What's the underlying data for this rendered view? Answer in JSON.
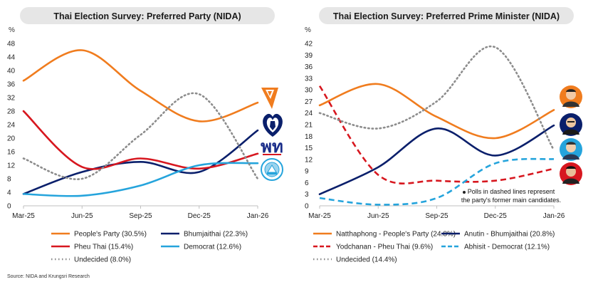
{
  "colors": {
    "orange": "#F07C1E",
    "navy": "#0A1F6B",
    "red": "#D7171F",
    "blue": "#25A4DC",
    "grey": "#8C8C8C",
    "title_bg": "#E6E6E6",
    "axis": "#BFBFBF"
  },
  "source": "Source: NIDA and Krungsri Research",
  "chart_data": [
    {
      "type": "line",
      "title": "Thai Election Survey: Preferred Party (NIDA)",
      "ylabel": "%",
      "ylim": [
        0,
        48
      ],
      "yticks": [
        0,
        4,
        8,
        12,
        16,
        20,
        24,
        28,
        32,
        36,
        40,
        44,
        48
      ],
      "categories": [
        "Mar-25",
        "Jun-25",
        "Sep-25",
        "Dec-25",
        "Jan-26"
      ],
      "series": [
        {
          "name": "People's Party",
          "legend": "People's Party (30.5%)",
          "color": "#F07C1E",
          "dashed": false,
          "style": "solid",
          "values": [
            37,
            46,
            34,
            25,
            30.5
          ]
        },
        {
          "name": "Bhumjaithai",
          "legend": "Bhumjaithai (22.3%)",
          "color": "#0A1F6B",
          "dashed": false,
          "style": "solid",
          "values": [
            3.5,
            10,
            13,
            10,
            22.3
          ]
        },
        {
          "name": "Pheu Thai",
          "legend": "Pheu Thai (15.4%)",
          "color": "#D7171F",
          "dashed": false,
          "style": "solid",
          "values": [
            28,
            11.5,
            14,
            11,
            15.4
          ]
        },
        {
          "name": "Democrat",
          "legend": "Democrat (12.6%)",
          "color": "#25A4DC",
          "dashed": false,
          "style": "solid",
          "values": [
            3.5,
            3,
            6,
            12,
            12.6
          ]
        },
        {
          "name": "Undecided",
          "legend": "Undecided (8.0%)",
          "color": "#8C8C8C",
          "dashed": true,
          "style": "dotted",
          "values": [
            14,
            8,
            21,
            33,
            8
          ]
        }
      ],
      "logos": [
        "people-party-logo",
        "bhumjaithai-logo",
        "pheu-thai-logo",
        "democrat-logo"
      ],
      "logo_text": {
        "pheu_thai": "พท"
      },
      "legend_position": "bottom"
    },
    {
      "type": "line",
      "title": "Thai Election Survey: Preferred Prime Minister (NIDA)",
      "ylabel": "%",
      "ylim": [
        0,
        42
      ],
      "yticks": [
        0,
        3,
        6,
        9,
        12,
        15,
        18,
        21,
        24,
        27,
        30,
        33,
        36,
        39,
        42
      ],
      "categories": [
        "Mar-25",
        "Jun-25",
        "Sep-25",
        "Dec-25",
        "Jan-26"
      ],
      "series": [
        {
          "name": "Natthaphong - People's Party",
          "legend": "Natthaphong - People's Party (24.8%)",
          "color": "#F07C1E",
          "dashed": false,
          "style": "solid",
          "values": [
            26,
            31.5,
            23,
            17.5,
            24.8
          ]
        },
        {
          "name": "Anutin - Bhumjaithai",
          "legend": "Anutin - Bhumjaithai (20.8%)",
          "color": "#0A1F6B",
          "dashed": false,
          "style": "solid",
          "values": [
            3,
            10,
            20,
            13,
            20.8
          ]
        },
        {
          "name": "Yodchanan - Pheu Thai",
          "legend": "Yodchanan - Pheu Thai (9.6%)",
          "color": "#D7171F",
          "dashed": true,
          "style": "dashed",
          "values": [
            31,
            8,
            6.5,
            6.5,
            9.6
          ]
        },
        {
          "name": "Abhisit - Democrat",
          "legend": "Abhisit - Democrat (12.1%)",
          "color": "#25A4DC",
          "dashed": true,
          "style": "dashed",
          "values": [
            2,
            0.3,
            2,
            11,
            12.1
          ]
        },
        {
          "name": "Undecided",
          "legend": "Undecided (14.4%)",
          "color": "#8C8C8C",
          "dashed": true,
          "style": "dotted",
          "values": [
            24,
            20,
            27,
            41,
            14.4
          ]
        }
      ],
      "annotation": "Polls in dashed lines represent the party's former main candidates.",
      "portraits": [
        "natthaphong-portrait",
        "anutin-portrait",
        "abhisit-portrait",
        "yodchanan-portrait"
      ],
      "legend_position": "bottom"
    }
  ]
}
